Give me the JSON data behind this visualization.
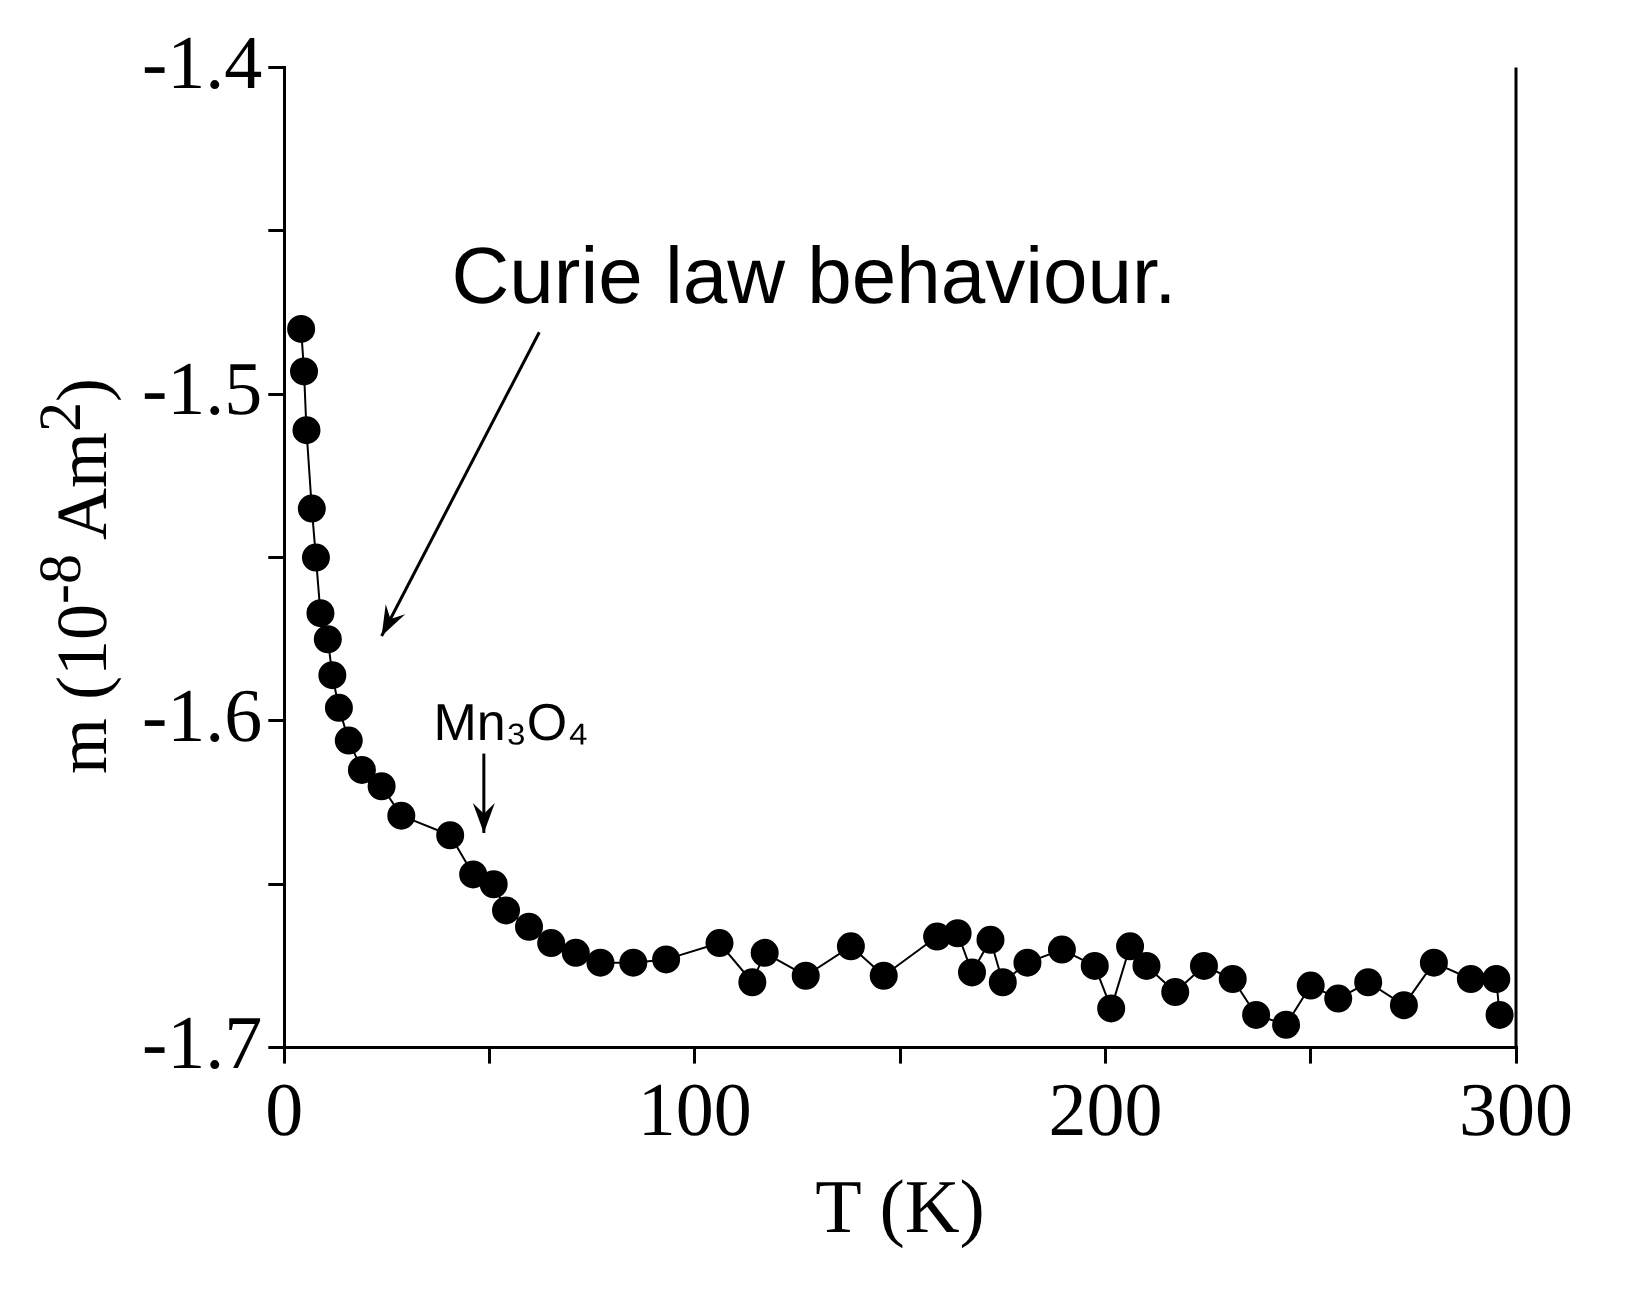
{
  "chart_data": {
    "type": "line",
    "xlabel": "T (K)",
    "ylabel": "m (10$^{-8}$ Am$^{2}$)",
    "xlim": [
      0,
      300
    ],
    "xticks": [
      0,
      {
        "value": 50,
        "label": null
      },
      100,
      {
        "value": 150,
        "label": null
      },
      200,
      {
        "value": 250,
        "label": null
      },
      300
    ],
    "ylim": [
      -1.7,
      -1.4
    ],
    "yticks": [
      -1.7,
      {
        "value": -1.65,
        "label": null
      },
      -1.6,
      {
        "value": -1.55,
        "label": null
      },
      -1.5,
      {
        "value": -1.45,
        "label": null
      },
      -1.4
    ],
    "marker": "circle",
    "line_style": "solid",
    "annotations": [
      "Curie law behaviour.",
      "Mn₃O₄"
    ],
    "series": [
      {
        "color": "#000000",
        "x": [
          4.1,
          4.8,
          5.4,
          6.7,
          7.7,
          8.8,
          10.6,
          11.7,
          13.3,
          15.7,
          18.9,
          23.7,
          28.5,
          40.4,
          46,
          51,
          54,
          59.6,
          65,
          71,
          77,
          85,
          93,
          106,
          114,
          117,
          127,
          138,
          146,
          159,
          164,
          167.5,
          172,
          175,
          181,
          189.4,
          197.4,
          201.4,
          206,
          210,
          217,
          224,
          231,
          236.7,
          244,
          250,
          256.7,
          264,
          272.7,
          280,
          289,
          295.2,
          296
        ],
        "values": [
          -1.48,
          -1.493,
          -1.511,
          -1.535,
          -1.55,
          -1.567,
          -1.575,
          -1.586,
          -1.596,
          -1.606,
          -1.615,
          -1.62,
          -1.629,
          -1.635,
          -1.647,
          -1.65,
          -1.658,
          -1.663,
          -1.668,
          -1.671,
          -1.674,
          -1.674,
          -1.673,
          -1.668,
          -1.68,
          -1.671,
          -1.678,
          -1.669,
          -1.678,
          -1.666,
          -1.665,
          -1.677,
          -1.667,
          -1.68,
          -1.674,
          -1.67,
          -1.675,
          -1.688,
          -1.669,
          -1.675,
          -1.683,
          -1.675,
          -1.679,
          -1.69,
          -1.693,
          -1.681,
          -1.685,
          -1.68,
          -1.687,
          -1.674,
          -1.679,
          -1.679,
          -1.69
        ]
      }
    ]
  }
}
